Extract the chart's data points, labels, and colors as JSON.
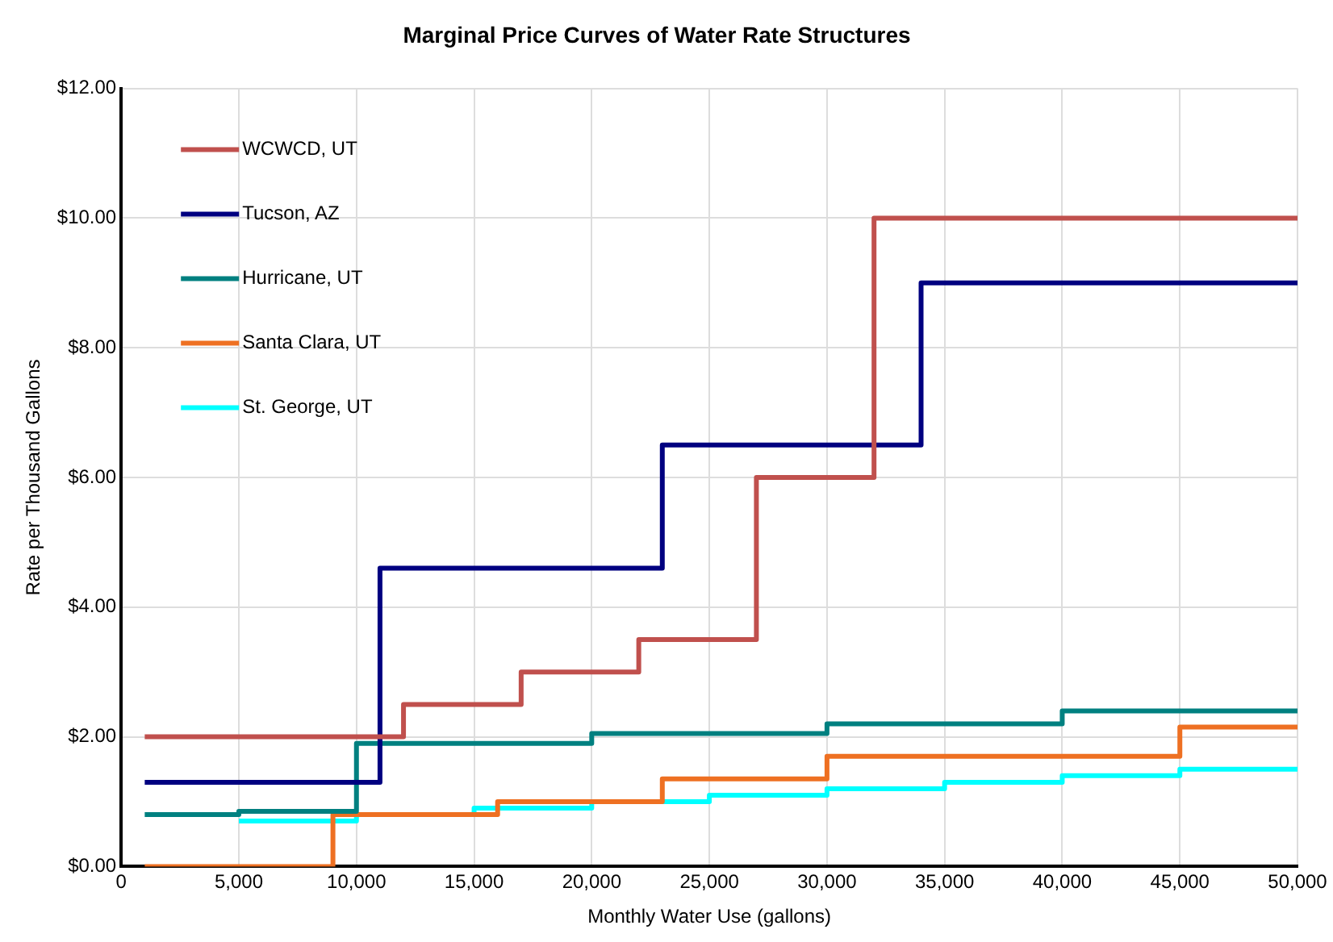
{
  "chart_data": {
    "type": "step",
    "title": "Marginal Price Curves of Water Rate Structures",
    "xlabel": "Monthly Water Use (gallons)",
    "ylabel": "Rate per Thousand Gallons",
    "xlim": [
      0,
      50000
    ],
    "ylim": [
      0,
      12
    ],
    "xticks": [
      0,
      {
        "value": 5000,
        "label": "5,000"
      },
      {
        "value": 10000,
        "label": "10,000"
      },
      {
        "value": 15000,
        "label": "15,000"
      },
      {
        "value": 20000,
        "label": "20,000"
      },
      {
        "value": 25000,
        "label": "25,000"
      },
      {
        "value": 30000,
        "label": "30,000"
      },
      {
        "value": 35000,
        "label": "35,000"
      },
      {
        "value": 40000,
        "label": "40,000"
      },
      {
        "value": 45000,
        "label": "45,000"
      },
      {
        "value": 50000,
        "label": "50,000"
      }
    ],
    "yticks": [
      {
        "value": 0,
        "label": "$0.00"
      },
      {
        "value": 2,
        "label": "$2.00"
      },
      {
        "value": 4,
        "label": "$4.00"
      },
      {
        "value": 6,
        "label": "$6.00"
      },
      {
        "value": 8,
        "label": "$8.00"
      },
      {
        "value": 10,
        "label": "$10.00"
      },
      {
        "value": 12,
        "label": "$12.00"
      }
    ],
    "grid": true,
    "legend": "top left",
    "marker": "none",
    "line_style": "solid",
    "series": [
      {
        "name": "WCWCD, UT",
        "color": "#c0504d",
        "x": [
          1000,
          12000,
          17000,
          22000,
          27000,
          32000,
          50000
        ],
        "values": [
          2.0,
          2.5,
          3.0,
          3.5,
          6.0,
          10.0,
          10.0
        ]
      },
      {
        "name": "Tucson, AZ",
        "color": "#000080",
        "x": [
          1000,
          11000,
          23000,
          34000,
          50000
        ],
        "values": [
          1.3,
          4.6,
          6.5,
          9.0,
          9.0
        ]
      },
      {
        "name": "Hurricane, UT",
        "color": "#008080",
        "x": [
          1000,
          5000,
          10000,
          20000,
          30000,
          40000,
          50000
        ],
        "values": [
          0.8,
          0.85,
          1.9,
          2.05,
          2.2,
          2.4,
          2.4
        ]
      },
      {
        "name": "Santa Clara, UT",
        "color": "#ee7022",
        "x": [
          1000,
          9000,
          16000,
          23000,
          30000,
          45000,
          50000
        ],
        "values": [
          0,
          0.8,
          1.0,
          1.35,
          1.7,
          2.15,
          2.15
        ]
      },
      {
        "name": "St. George, UT",
        "color": "#00ffff",
        "x": [
          5000,
          10000,
          15000,
          20000,
          25000,
          30000,
          35000,
          40000,
          45000,
          50000
        ],
        "values": [
          0.7,
          0.8,
          0.9,
          1.0,
          1.1,
          1.2,
          1.3,
          1.4,
          1.5,
          1.5
        ]
      }
    ]
  }
}
